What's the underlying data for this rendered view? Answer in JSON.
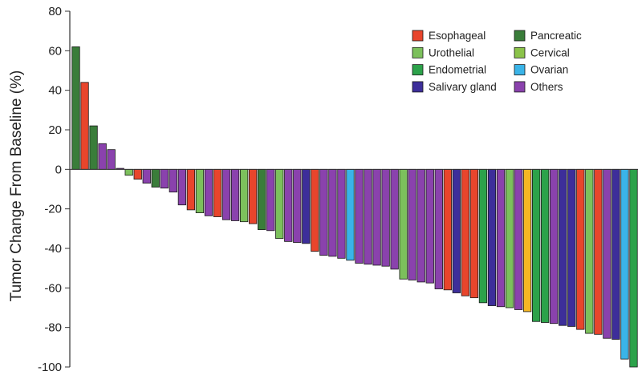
{
  "chart_data": {
    "type": "bar",
    "title": "",
    "xlabel": "",
    "ylabel": "Tumor Change From Baseline (%)",
    "ylim": [
      -100,
      80
    ],
    "yticks": [
      80,
      60,
      40,
      20,
      0,
      -20,
      -40,
      -60,
      -80,
      -100
    ],
    "grid": false,
    "legend_position": "top-right",
    "colors": {
      "Esophageal": "#e8452c",
      "Pancreatic": "#3a7d3a",
      "Urothelial": "#7cc05c",
      "Cervical": "#8bc34a",
      "Endometrial": "#2ca24a",
      "Ovarian": "#3ab4e8",
      "Salivary gland": "#3d2e9a",
      "Others": "#8a42ad",
      "Unlabeled": "#f5b623"
    },
    "legend": [
      {
        "label": "Esophageal",
        "category": "Esophageal"
      },
      {
        "label": "Pancreatic",
        "category": "Pancreatic"
      },
      {
        "label": "Urothelial",
        "category": "Urothelial"
      },
      {
        "label": "Cervical",
        "category": "Cervical"
      },
      {
        "label": "Endometrial",
        "category": "Endometrial"
      },
      {
        "label": "Ovarian",
        "category": "Ovarian"
      },
      {
        "label": "Salivary gland",
        "category": "Salivary gland"
      },
      {
        "label": "Others",
        "category": "Others"
      }
    ],
    "bars": [
      {
        "value": 62,
        "category": "Pancreatic"
      },
      {
        "value": 44,
        "category": "Esophageal"
      },
      {
        "value": 22,
        "category": "Pancreatic"
      },
      {
        "value": 13,
        "category": "Others"
      },
      {
        "value": 10,
        "category": "Others"
      },
      {
        "value": 0.5,
        "category": "Others"
      },
      {
        "value": -3,
        "category": "Urothelial"
      },
      {
        "value": -5,
        "category": "Esophageal"
      },
      {
        "value": -7,
        "category": "Others"
      },
      {
        "value": -9,
        "category": "Pancreatic"
      },
      {
        "value": -9.5,
        "category": "Others"
      },
      {
        "value": -11.5,
        "category": "Others"
      },
      {
        "value": -18,
        "category": "Others"
      },
      {
        "value": -20.5,
        "category": "Esophageal"
      },
      {
        "value": -22,
        "category": "Urothelial"
      },
      {
        "value": -23.5,
        "category": "Others"
      },
      {
        "value": -24,
        "category": "Esophageal"
      },
      {
        "value": -25.5,
        "category": "Others"
      },
      {
        "value": -26,
        "category": "Others"
      },
      {
        "value": -26.5,
        "category": "Urothelial"
      },
      {
        "value": -27.5,
        "category": "Esophageal"
      },
      {
        "value": -30.5,
        "category": "Pancreatic"
      },
      {
        "value": -31,
        "category": "Others"
      },
      {
        "value": -35,
        "category": "Urothelial"
      },
      {
        "value": -36.5,
        "category": "Others"
      },
      {
        "value": -37,
        "category": "Others"
      },
      {
        "value": -37.5,
        "category": "Salivary gland"
      },
      {
        "value": -41.5,
        "category": "Esophageal"
      },
      {
        "value": -43.5,
        "category": "Others"
      },
      {
        "value": -44,
        "category": "Others"
      },
      {
        "value": -45,
        "category": "Others"
      },
      {
        "value": -46,
        "category": "Ovarian"
      },
      {
        "value": -47.5,
        "category": "Others"
      },
      {
        "value": -48,
        "category": "Others"
      },
      {
        "value": -48.5,
        "category": "Others"
      },
      {
        "value": -49,
        "category": "Others"
      },
      {
        "value": -50.5,
        "category": "Others"
      },
      {
        "value": -55.5,
        "category": "Urothelial"
      },
      {
        "value": -56,
        "category": "Others"
      },
      {
        "value": -57,
        "category": "Others"
      },
      {
        "value": -57.5,
        "category": "Others"
      },
      {
        "value": -60.5,
        "category": "Others"
      },
      {
        "value": -61,
        "category": "Esophageal"
      },
      {
        "value": -62.5,
        "category": "Salivary gland"
      },
      {
        "value": -64,
        "category": "Esophageal"
      },
      {
        "value": -65,
        "category": "Esophageal"
      },
      {
        "value": -67.5,
        "category": "Endometrial"
      },
      {
        "value": -69,
        "category": "Salivary gland"
      },
      {
        "value": -69.5,
        "category": "Others"
      },
      {
        "value": -70,
        "category": "Urothelial"
      },
      {
        "value": -71,
        "category": "Others"
      },
      {
        "value": -72,
        "category": "Unlabeled"
      },
      {
        "value": -77,
        "category": "Endometrial"
      },
      {
        "value": -77.5,
        "category": "Endometrial"
      },
      {
        "value": -78,
        "category": "Others"
      },
      {
        "value": -79,
        "category": "Salivary gland"
      },
      {
        "value": -79.5,
        "category": "Salivary gland"
      },
      {
        "value": -81,
        "category": "Esophageal"
      },
      {
        "value": -83,
        "category": "Urothelial"
      },
      {
        "value": -83.5,
        "category": "Esophageal"
      },
      {
        "value": -85.5,
        "category": "Others"
      },
      {
        "value": -86,
        "category": "Salivary gland"
      },
      {
        "value": -96,
        "category": "Ovarian"
      },
      {
        "value": -100,
        "category": "Endometrial"
      }
    ]
  }
}
